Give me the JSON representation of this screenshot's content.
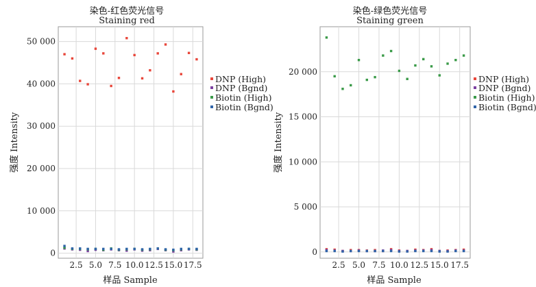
{
  "chart_data": [
    {
      "type": "scatter",
      "title": "染色-红色荧光信号",
      "subtitle": "Staining red",
      "xlabel": "样品 Sample",
      "ylabel": "强度 Intensity",
      "xlim": [
        0.2,
        18.8
      ],
      "ylim": [
        -1200,
        53500
      ],
      "x_ticks": [
        2.5,
        5.0,
        7.5,
        10.0,
        12.5,
        15.0,
        17.5
      ],
      "x_tick_labels": [
        "2.5",
        "5.0",
        "7.5",
        "10.0",
        "12.5",
        "15.0",
        "17.5"
      ],
      "y_ticks": [
        0,
        10000,
        20000,
        30000,
        40000,
        50000
      ],
      "y_tick_labels": [
        "0",
        "10 000",
        "20 000",
        "30 000",
        "40 000",
        "50 000"
      ],
      "grid": true,
      "legend_position": "right",
      "series": [
        {
          "name": "DNP (High)",
          "color": "#e8463a",
          "x": [
            1,
            2,
            3,
            4,
            5,
            6,
            7,
            8,
            9,
            10,
            11,
            12,
            13,
            14,
            15,
            16,
            17,
            18
          ],
          "y": [
            47000,
            46000,
            40700,
            39900,
            48300,
            47200,
            39500,
            41400,
            50800,
            46800,
            41300,
            43200,
            47200,
            49300,
            38200,
            42300,
            47300,
            45800
          ]
        },
        {
          "name": "DNP (Bgnd)",
          "color": "#7b3fa0",
          "x": [
            1,
            2,
            3,
            4,
            5,
            6,
            7,
            8,
            9,
            10,
            11,
            12,
            13,
            14,
            15,
            16,
            17,
            18
          ],
          "y": [
            1100,
            900,
            800,
            500,
            800,
            700,
            900,
            700,
            600,
            900,
            600,
            700,
            1000,
            700,
            400,
            700,
            900,
            800
          ]
        },
        {
          "name": "Biotin (High)",
          "color": "#3a9a48",
          "x": [
            1,
            2,
            3,
            4,
            5,
            6,
            7,
            8,
            9,
            10,
            11,
            12,
            13,
            14,
            15,
            16,
            17,
            18
          ],
          "y": [
            1300,
            1000,
            1000,
            900,
            1000,
            800,
            1100,
            800,
            900,
            1000,
            800,
            900,
            1100,
            800,
            700,
            900,
            1000,
            900
          ]
        },
        {
          "name": "Biotin (Bgnd)",
          "color": "#2f64a8",
          "x": [
            1,
            2,
            3,
            4,
            5,
            6,
            7,
            8,
            9,
            10,
            11,
            12,
            13,
            14,
            15,
            16,
            17,
            18
          ],
          "y": [
            1700,
            1100,
            1100,
            1000,
            1000,
            1000,
            1000,
            900,
            1000,
            1000,
            900,
            1000,
            1100,
            900,
            800,
            1000,
            1000,
            1000
          ]
        }
      ]
    },
    {
      "type": "scatter",
      "title": "染色-绿色荧光信号",
      "subtitle": "Staining green",
      "xlabel": "样品 Sample",
      "ylabel": "强度 Intensity",
      "xlim": [
        0.2,
        18.8
      ],
      "ylim": [
        -700,
        25000
      ],
      "x_ticks": [
        2.5,
        5.0,
        7.5,
        10.0,
        12.5,
        15.0,
        17.5
      ],
      "x_tick_labels": [
        "2.5",
        "5.0",
        "7.5",
        "10.0",
        "12.5",
        "15.0",
        "17.5"
      ],
      "y_ticks": [
        0,
        5000,
        10000,
        15000,
        20000
      ],
      "y_tick_labels": [
        "0",
        "5 000",
        "10 000",
        "15 000",
        "20 000"
      ],
      "grid": true,
      "legend_position": "right",
      "series": [
        {
          "name": "DNP (High)",
          "color": "#e8463a",
          "x": [
            1,
            2,
            3,
            4,
            5,
            6,
            7,
            8,
            9,
            10,
            11,
            12,
            13,
            14,
            15,
            16,
            17,
            18
          ],
          "y": [
            300,
            250,
            100,
            200,
            200,
            150,
            200,
            100,
            300,
            150,
            100,
            250,
            200,
            300,
            100,
            150,
            200,
            250
          ]
        },
        {
          "name": "DNP (Bgnd)",
          "color": "#7b3fa0",
          "x": [
            1,
            2,
            3,
            4,
            5,
            6,
            7,
            8,
            9,
            10,
            11,
            12,
            13,
            14,
            15,
            16,
            17,
            18
          ],
          "y": [
            200,
            150,
            100,
            100,
            150,
            100,
            100,
            150,
            200,
            100,
            100,
            150,
            150,
            200,
            100,
            100,
            150,
            150
          ]
        },
        {
          "name": "Biotin (High)",
          "color": "#3a9a48",
          "x": [
            1,
            2,
            3,
            4,
            5,
            6,
            7,
            8,
            9,
            10,
            11,
            12,
            13,
            14,
            15,
            16,
            17,
            18
          ],
          "y": [
            23800,
            19500,
            18100,
            18500,
            21300,
            19100,
            19400,
            21800,
            22300,
            20100,
            19200,
            20700,
            21400,
            20600,
            19600,
            20900,
            21300,
            21800
          ]
        },
        {
          "name": "Biotin (Bgnd)",
          "color": "#2f64a8",
          "x": [
            1,
            2,
            3,
            4,
            5,
            6,
            7,
            8,
            9,
            10,
            11,
            12,
            13,
            14,
            15,
            16,
            17,
            18
          ],
          "y": [
            100,
            100,
            50,
            100,
            100,
            100,
            100,
            100,
            100,
            50,
            50,
            100,
            100,
            100,
            50,
            50,
            100,
            100
          ]
        }
      ]
    }
  ]
}
